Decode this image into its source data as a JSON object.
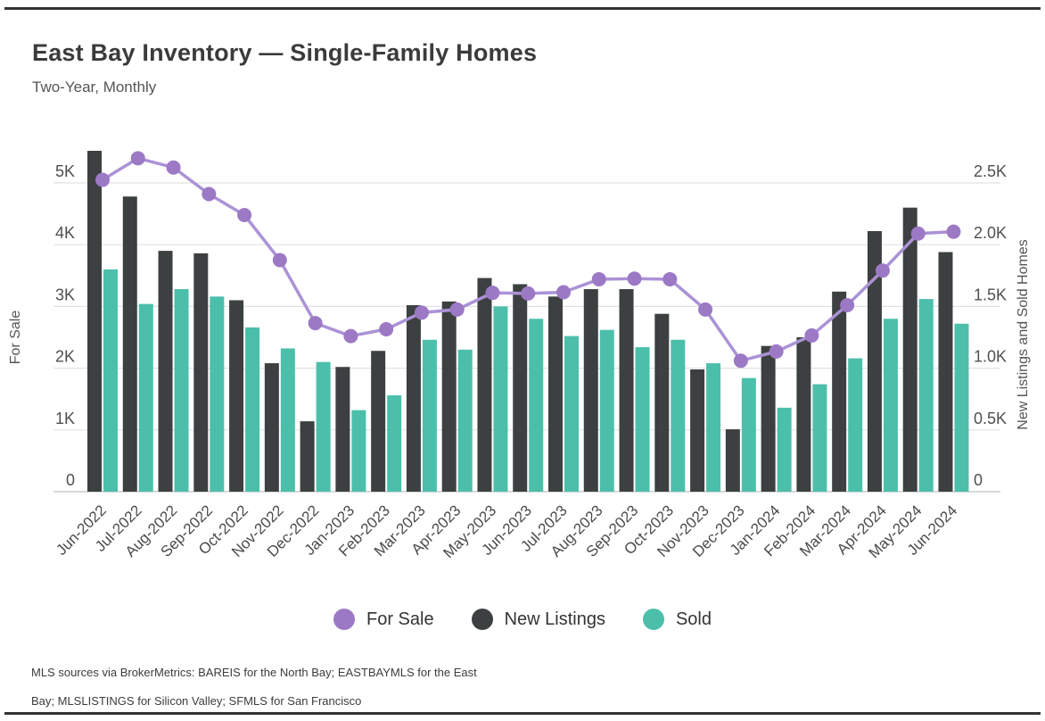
{
  "page": {
    "title": "East Bay Inventory — Single-Family Homes",
    "subtitle": "Two-Year, Monthly",
    "footnote_line1": "MLS sources via BrokerMetrics: BAREIS for the North Bay; EASTBAYMLS for the East",
    "footnote_line2": "Bay; MLSLISTINGS for Silicon Valley; SFMLS for San Francisco"
  },
  "colors": {
    "new_listings_bar": "#3d4040",
    "sold_bar": "#4cbfab",
    "for_sale_line": "#ab92d6",
    "for_sale_dot": "#9c79c5",
    "gridline": "#e2e2e2",
    "axis_line": "#cccccc",
    "title_text": "#3b3b3b",
    "tick_text": "#4f4f4f"
  },
  "chart_data": {
    "type": "combo",
    "title": "East Bay Inventory — Single-Family Homes",
    "subtitle": "Two-Year, Monthly",
    "grid": true,
    "legend_position": "bottom",
    "categories": [
      "Jun-2022",
      "Jul-2022",
      "Aug-2022",
      "Sep-2022",
      "Oct-2022",
      "Nov-2022",
      "Dec-2022",
      "Jan-2023",
      "Feb-2023",
      "Mar-2023",
      "Apr-2023",
      "May-2023",
      "Jun-2023",
      "Jul-2023",
      "Aug-2023",
      "Sep-2023",
      "Oct-2023",
      "Nov-2023",
      "Dec-2023",
      "Jan-2024",
      "Feb-2024",
      "Mar-2024",
      "Apr-2024",
      "May-2024",
      "Jun-2024"
    ],
    "left_axis": {
      "label": "For Sale",
      "tick_labels": [
        "0",
        "1K",
        "2K",
        "3K",
        "4K",
        "5K"
      ],
      "tick_values": [
        0,
        1000,
        2000,
        3000,
        4000,
        5000
      ],
      "range": [
        0,
        5600
      ]
    },
    "right_axis": {
      "label": "New Listings and Sold Homes",
      "tick_labels": [
        "0",
        "0.5K",
        "1.0K",
        "1.5K",
        "2.0K",
        "2.5K"
      ],
      "tick_values": [
        0,
        500,
        1000,
        1500,
        2000,
        2500
      ],
      "range": [
        0,
        2800
      ]
    },
    "series": [
      {
        "name": "For Sale",
        "kind": "line",
        "axis": "left",
        "color": "#ab92d6",
        "dot_color": "#9c79c5",
        "values": [
          5050,
          5400,
          5250,
          4820,
          4480,
          3750,
          2730,
          2520,
          2630,
          2900,
          2950,
          3220,
          3210,
          3230,
          3440,
          3450,
          3440,
          2950,
          2120,
          2270,
          2530,
          3020,
          3580,
          4180,
          4210
        ]
      },
      {
        "name": "New Listings",
        "kind": "bar",
        "axis": "right",
        "color": "#3d4040",
        "values": [
          2760,
          2390,
          1950,
          1930,
          1550,
          1040,
          570,
          1010,
          1140,
          1510,
          1540,
          1730,
          1680,
          1580,
          1640,
          1640,
          1440,
          990,
          505,
          1180,
          1250,
          1620,
          2110,
          2300,
          1940
        ]
      },
      {
        "name": "Sold",
        "kind": "bar",
        "axis": "right",
        "color": "#4cbfab",
        "values": [
          1800,
          1520,
          1640,
          1580,
          1330,
          1160,
          1050,
          660,
          780,
          1230,
          1150,
          1500,
          1400,
          1260,
          1310,
          1170,
          1230,
          1040,
          920,
          680,
          870,
          1080,
          1400,
          1560,
          1360
        ]
      }
    ]
  }
}
